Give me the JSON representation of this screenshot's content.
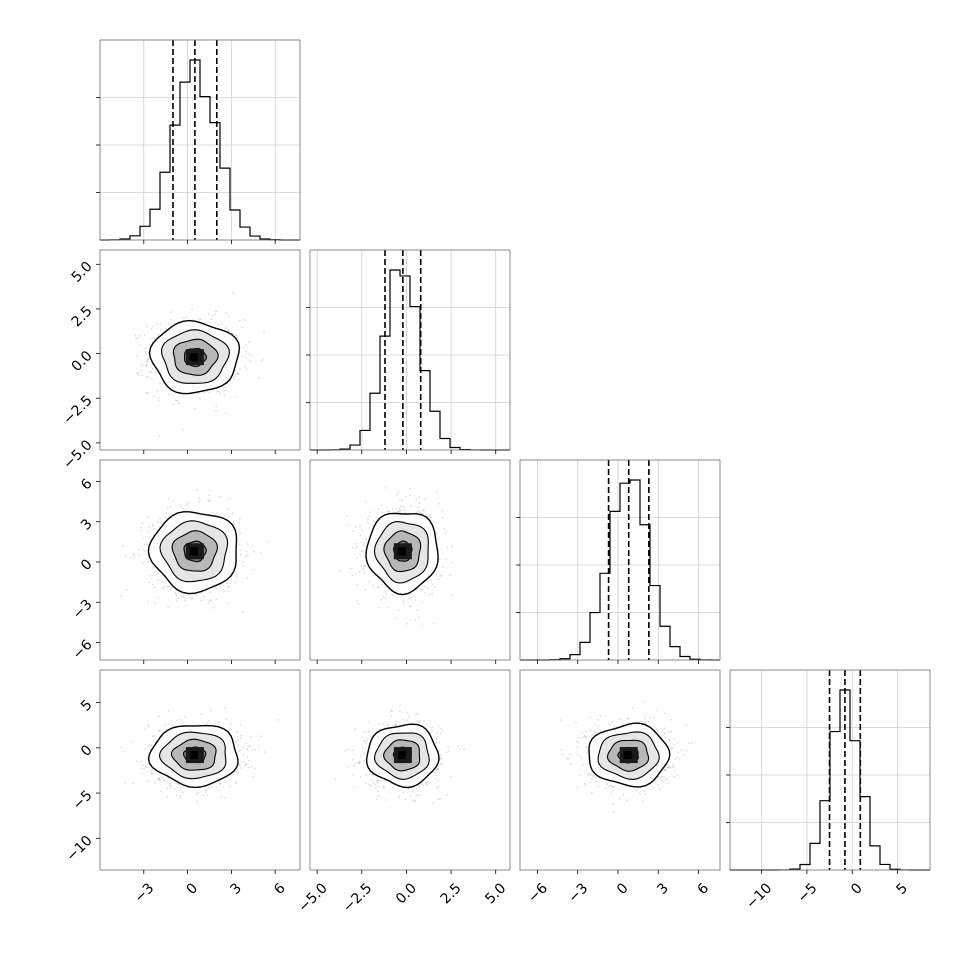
{
  "chart_data": {
    "type": "corner",
    "title": "",
    "grid": true,
    "histogram_color": "#000000",
    "contour_color": "#000000",
    "scatter_color": "#9a9a9a",
    "quantile_line_style": "dashed",
    "parameters": [
      {
        "label": "",
        "range": [
          -6.0,
          7.7
        ],
        "ticks": [
          -3,
          0,
          3,
          6
        ],
        "tick_labels": [
          "−3",
          "0",
          "3",
          "6"
        ],
        "mean": 0.5,
        "sigma": 1.5,
        "quantiles": [
          -1.0,
          0.5,
          2.0
        ]
      },
      {
        "label": "",
        "range": [
          -5.4,
          5.8
        ],
        "ticks": [
          -5.0,
          -2.5,
          0.0,
          2.5,
          5.0
        ],
        "tick_labels": [
          "−5.0",
          "−2.5",
          "0.0",
          "2.5",
          "5.0"
        ],
        "mean": -0.2,
        "sigma": 1.0,
        "quantiles": [
          -1.2,
          -0.2,
          0.8
        ]
      },
      {
        "label": "",
        "range": [
          -7.3,
          7.6
        ],
        "ticks": [
          -6,
          -3,
          0,
          3,
          6
        ],
        "tick_labels": [
          "−6",
          "−3",
          "0",
          "3",
          "6"
        ],
        "mean": 0.8,
        "sigma": 1.5,
        "quantiles": [
          -0.7,
          0.8,
          2.3
        ]
      },
      {
        "label": "",
        "range": [
          -13.5,
          8.6
        ],
        "ticks": [
          -10,
          -5,
          0,
          5
        ],
        "tick_labels": [
          "−10",
          "−5",
          "0",
          "5"
        ],
        "mean": -0.8,
        "sigma": 1.7,
        "quantiles": [
          -2.5,
          -0.8,
          0.9
        ]
      }
    ],
    "contour_levels_sigma": [
      0.5,
      1.0,
      1.5,
      2.0
    ]
  }
}
